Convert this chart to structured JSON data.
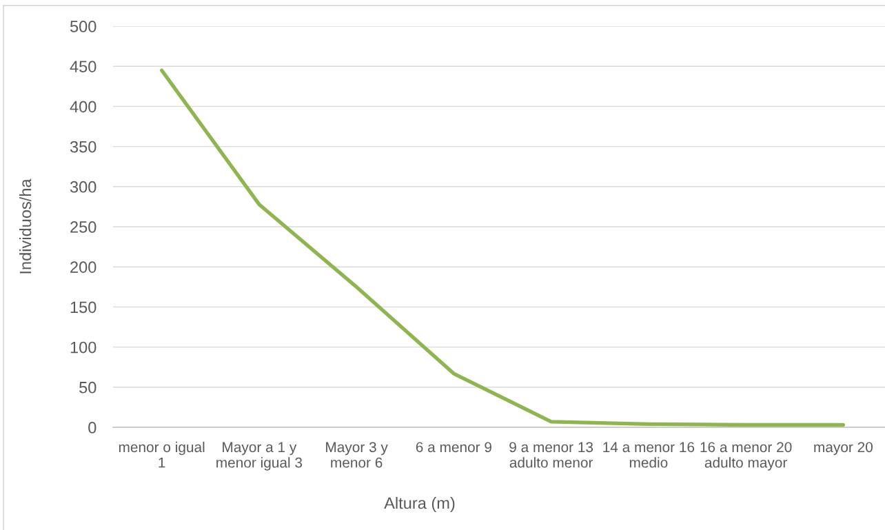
{
  "chart_data": {
    "type": "line",
    "xlabel": "Altura (m)",
    "ylabel": "Individuos/ha",
    "categories": [
      "menor o igual\n1",
      "Mayor a 1 y\nmenor igual 3",
      "Mayor 3 y\nmenor 6",
      "6 a menor 9",
      "9 a menor 13\nadulto menor",
      "14 a menor 16\nmedio",
      "16 a menor 20\nadulto mayor",
      "mayor 20"
    ],
    "series": [
      {
        "color": "#8fb550",
        "values": [
          445,
          278,
          175,
          67,
          7,
          4,
          3,
          3
        ]
      }
    ],
    "ylim": [
      0,
      500
    ],
    "yticks": [
      0,
      50,
      100,
      150,
      200,
      250,
      300,
      350,
      400,
      450,
      500
    ],
    "grid": "y",
    "line_style": "solid"
  }
}
